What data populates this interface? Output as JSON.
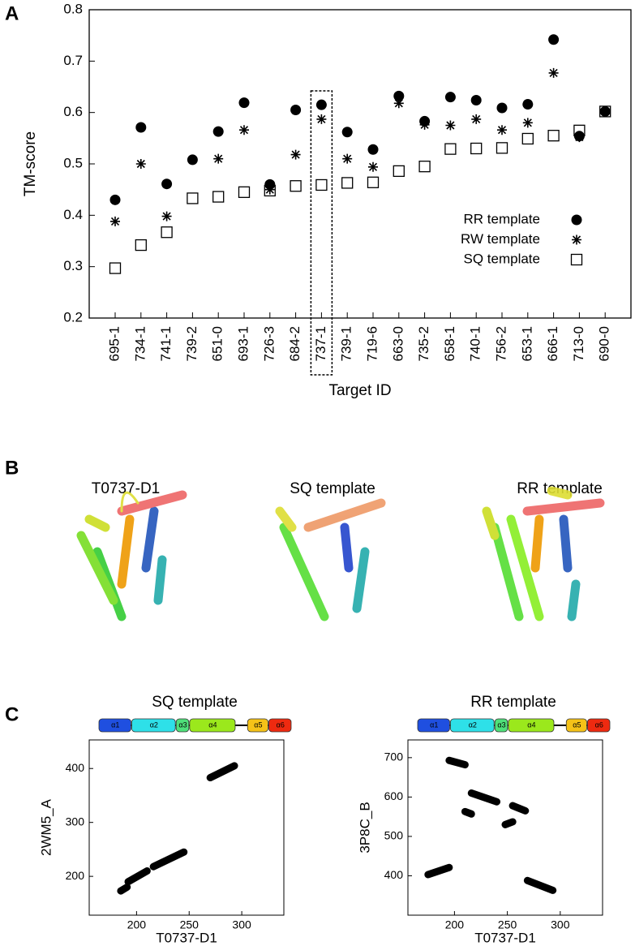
{
  "panels": [
    "A",
    "B",
    "C"
  ],
  "protein_titles": [
    "T0737-D1",
    "SQ template",
    "RR template"
  ],
  "chart_data": [
    {
      "type": "scatter",
      "categories": [
        "695-1",
        "734-1",
        "741-1",
        "739-2",
        "651-0",
        "693-1",
        "726-3",
        "684-2",
        "737-1",
        "739-1",
        "719-6",
        "663-0",
        "735-2",
        "658-1",
        "740-1",
        "756-2",
        "653-1",
        "666-1",
        "713-0",
        "690-0"
      ],
      "highlight": "737-1",
      "x_label": "Target ID",
      "y_label": "TM-score",
      "ylim": [
        0.2,
        0.8
      ],
      "yticks": [
        0.2,
        0.3,
        0.4,
        0.5,
        0.6,
        0.7,
        0.8
      ],
      "legend": "lower right",
      "series": [
        {
          "name": "RR template",
          "marker": "circle",
          "color": "#000000",
          "values": [
            0.43,
            0.571,
            0.461,
            0.508,
            0.563,
            0.619,
            0.46,
            0.605,
            0.615,
            0.562,
            0.528,
            0.632,
            0.583,
            0.63,
            0.624,
            0.609,
            0.616,
            0.742,
            0.554,
            0.602
          ]
        },
        {
          "name": "RW template",
          "marker": "asterisk",
          "color": "#000000",
          "values": [
            0.388,
            0.5,
            0.398,
            0.508,
            0.51,
            0.566,
            0.45,
            0.518,
            0.587,
            0.51,
            0.494,
            0.618,
            0.576,
            0.575,
            0.587,
            0.566,
            0.58,
            0.677,
            0.552,
            0.602
          ]
        },
        {
          "name": "SQ template",
          "marker": "square",
          "color": "#000000",
          "values": [
            0.297,
            0.342,
            0.367,
            0.433,
            0.436,
            0.445,
            0.448,
            0.457,
            0.459,
            0.463,
            0.464,
            0.486,
            0.495,
            0.529,
            0.53,
            0.531,
            0.549,
            0.555,
            0.565,
            0.602
          ]
        }
      ]
    },
    {
      "type": "segments",
      "title": "SQ template",
      "x_label": "T0737-D1",
      "y_label": "2WM5_A",
      "xlim": [
        155,
        340
      ],
      "xticks": [
        200,
        250,
        300
      ],
      "ylim": [
        128,
        453
      ],
      "yticks": [
        200,
        300,
        400
      ],
      "domains": [
        {
          "name": "α1",
          "color": "#1f4fe0"
        },
        {
          "name": "α2",
          "color": "#2ee0e8"
        },
        {
          "name": "α3",
          "color": "#4fe07a"
        },
        {
          "name": "α4",
          "color": "#9be81c"
        },
        {
          "name": "α5",
          "color": "#f5c218"
        },
        {
          "name": "α6",
          "color": "#ee2a10"
        }
      ],
      "segments": [
        {
          "x": [
            185,
            191
          ],
          "y": [
            173,
            180
          ]
        },
        {
          "x": [
            192,
            210
          ],
          "y": [
            190,
            210
          ]
        },
        {
          "x": [
            216,
            245
          ],
          "y": [
            218,
            245
          ]
        },
        {
          "x": [
            270,
            293
          ],
          "y": [
            383,
            405
          ]
        }
      ]
    },
    {
      "type": "segments",
      "title": "RR template",
      "x_label": "T0737-D1",
      "y_label": "3P8C_B",
      "xlim": [
        156,
        340
      ],
      "xticks": [
        200,
        250,
        300
      ],
      "ylim": [
        300,
        745
      ],
      "yticks": [
        400,
        500,
        600,
        700
      ],
      "domains": [
        {
          "name": "α1",
          "color": "#1f4fe0"
        },
        {
          "name": "α2",
          "color": "#2ee0e8"
        },
        {
          "name": "α3",
          "color": "#4fe07a"
        },
        {
          "name": "α4",
          "color": "#9be81c"
        },
        {
          "name": "α5",
          "color": "#f5c218"
        },
        {
          "name": "α6",
          "color": "#ee2a10"
        }
      ],
      "segments": [
        {
          "x": [
            175,
            195
          ],
          "y": [
            403,
            421
          ]
        },
        {
          "x": [
            195,
            210
          ],
          "y": [
            693,
            682
          ]
        },
        {
          "x": [
            210,
            216
          ],
          "y": [
            563,
            557
          ]
        },
        {
          "x": [
            216,
            240
          ],
          "y": [
            610,
            588
          ]
        },
        {
          "x": [
            248,
            255
          ],
          "y": [
            530,
            537
          ]
        },
        {
          "x": [
            255,
            267
          ],
          "y": [
            578,
            565
          ]
        },
        {
          "x": [
            269,
            293
          ],
          "y": [
            388,
            363
          ]
        }
      ]
    }
  ]
}
